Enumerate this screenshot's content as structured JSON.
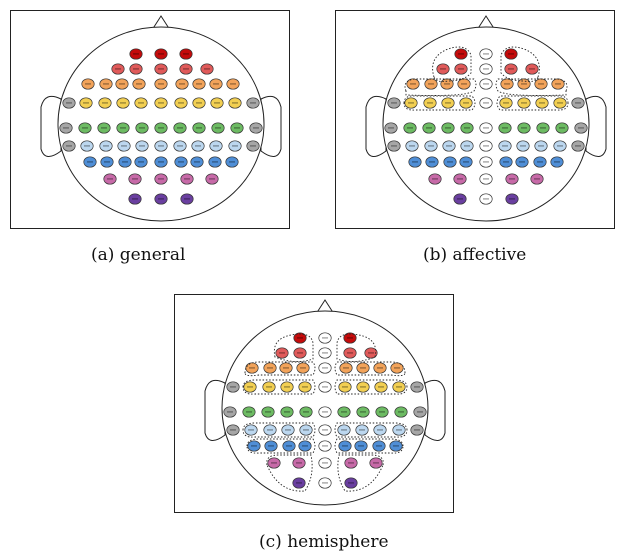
{
  "captions": {
    "a": "(a)  general",
    "b": "(b)  affective",
    "c": "(c)  hemisphere"
  },
  "colors": {
    "dark_red": "#c40b0b",
    "red": "#e05a5a",
    "orange": "#f2a35a",
    "yellow": "#f2cf52",
    "gray": "#a6a6a6",
    "green": "#6dbb63",
    "light_blue": "#bcd7ef",
    "blue": "#4f8ed6",
    "pink": "#c76aa8",
    "purple": "#6a3fa0",
    "white": "#ffffff"
  }
}
